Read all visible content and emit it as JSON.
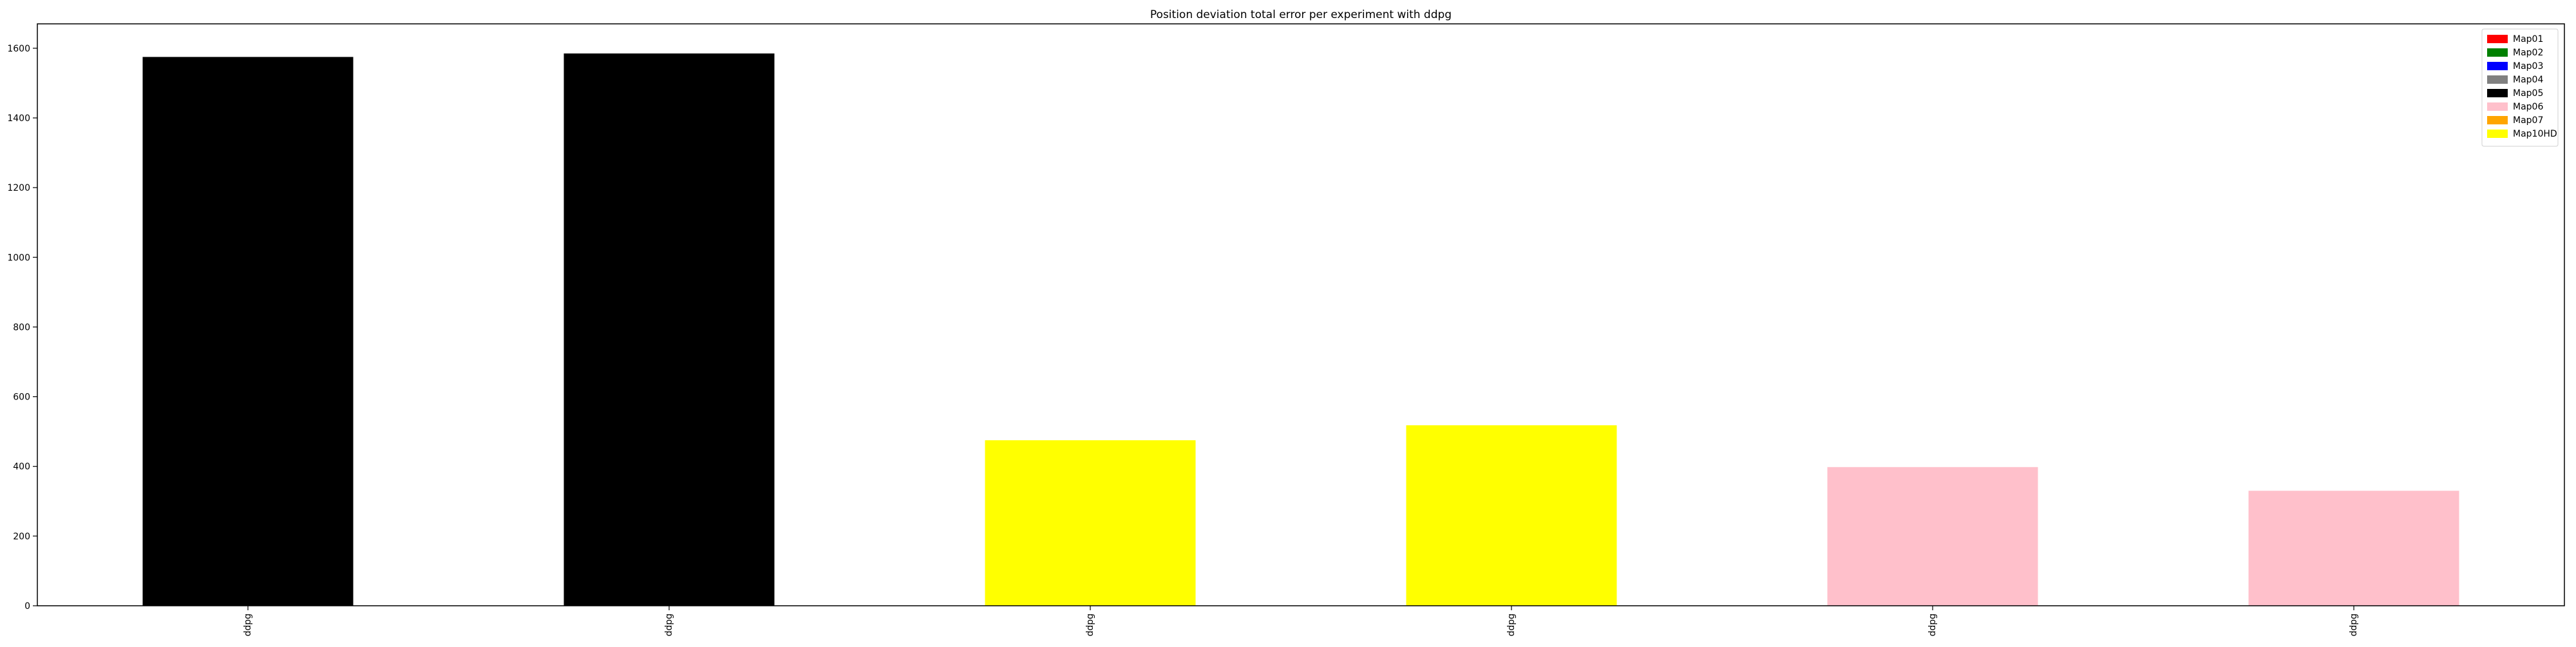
{
  "chart_data": {
    "type": "bar",
    "title": "Position deviation total error per experiment with ddpg",
    "xlabel": "",
    "ylabel": "",
    "categories": [
      "ddpg",
      "ddpg",
      "ddpg",
      "ddpg",
      "ddpg",
      "ddpg"
    ],
    "values": [
      1575,
      1585,
      475,
      518,
      398,
      330
    ],
    "bar_maps": [
      "Map05",
      "Map05",
      "Map10HD",
      "Map10HD",
      "Map06",
      "Map06"
    ],
    "ylim": [
      0,
      1670
    ],
    "yticks": [
      0,
      200,
      400,
      600,
      800,
      1000,
      1200,
      1400,
      1600
    ],
    "grid": false,
    "legend_position": "top-right",
    "legend": [
      {
        "label": "Map01",
        "color": "#ff0000"
      },
      {
        "label": "Map02",
        "color": "#008000"
      },
      {
        "label": "Map03",
        "color": "#0000ff"
      },
      {
        "label": "Map04",
        "color": "#808080"
      },
      {
        "label": "Map05",
        "color": "#000000"
      },
      {
        "label": "Map06",
        "color": "#ffc0cb"
      },
      {
        "label": "Map07",
        "color": "#ffa500"
      },
      {
        "label": "Map10HD",
        "color": "#ffff00"
      }
    ]
  }
}
